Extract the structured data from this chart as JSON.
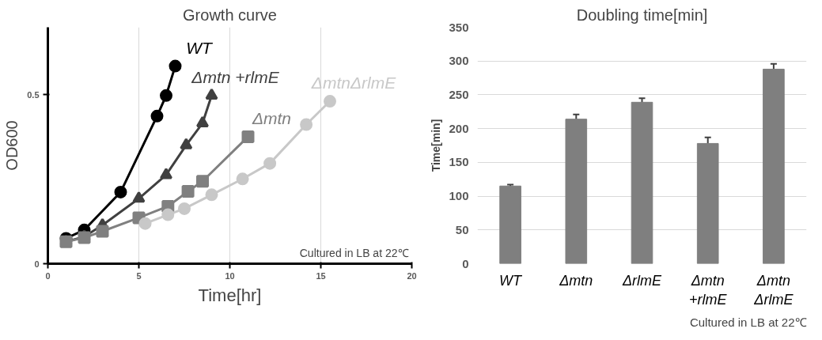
{
  "chart_data": [
    {
      "type": "line",
      "title": "Growth curve",
      "xlabel": "Time[hr]",
      "ylabel": "OD600",
      "xlim": [
        0,
        20
      ],
      "ylim": [
        0,
        0.7
      ],
      "xticks": [
        0,
        5,
        10,
        15,
        20
      ],
      "yticks": [
        0,
        0.5
      ],
      "grid": "x",
      "annotations": [
        "Cultured in LB at 22℃"
      ],
      "series": [
        {
          "name": "WT",
          "color": "#000000",
          "marker": "circle",
          "x": [
            1,
            2,
            4,
            6,
            6.5,
            7
          ],
          "values": [
            0.075,
            0.1,
            0.212,
            0.437,
            0.498,
            0.585
          ]
        },
        {
          "name": "Δmtn +rlmE",
          "color": "#404040",
          "marker": "triangle",
          "x": [
            1,
            2,
            3,
            5,
            6.5,
            7.6,
            8.5,
            9
          ],
          "values": [
            0.065,
            0.08,
            0.114,
            0.193,
            0.263,
            0.351,
            0.416,
            0.498
          ]
        },
        {
          "name": "Δmtn",
          "color": "#808080",
          "marker": "square",
          "x": [
            1,
            2,
            3,
            5,
            6.6,
            7.7,
            8.5,
            11
          ],
          "values": [
            0.065,
            0.077,
            0.096,
            0.136,
            0.17,
            0.214,
            0.244,
            0.376
          ]
        },
        {
          "name": "ΔmtnΔrlmE",
          "color": "#c8c8c8",
          "marker": "circle",
          "x": [
            5.35,
            6.6,
            7.5,
            9,
            10.7,
            12.2,
            14.2,
            15.5
          ],
          "values": [
            0.119,
            0.145,
            0.163,
            0.204,
            0.251,
            0.297,
            0.412,
            0.481
          ]
        }
      ]
    },
    {
      "type": "bar",
      "title": "Doubling time[min]",
      "ylabel": "Time[min]",
      "categories": [
        "WT",
        "Δmtn",
        "ΔrlmE",
        "Δmtn\n+rlmE",
        "Δmtn\nΔrlmE"
      ],
      "values": [
        115,
        214,
        239,
        178,
        288
      ],
      "errors": [
        2,
        7,
        6,
        9,
        8
      ],
      "color": "#7f7f7f",
      "ylim": [
        0,
        350
      ],
      "yticks": [
        0,
        50,
        100,
        150,
        200,
        250,
        300,
        350
      ],
      "grid": "y",
      "annotations": [
        "Cultured in LB at 22℃"
      ]
    }
  ]
}
